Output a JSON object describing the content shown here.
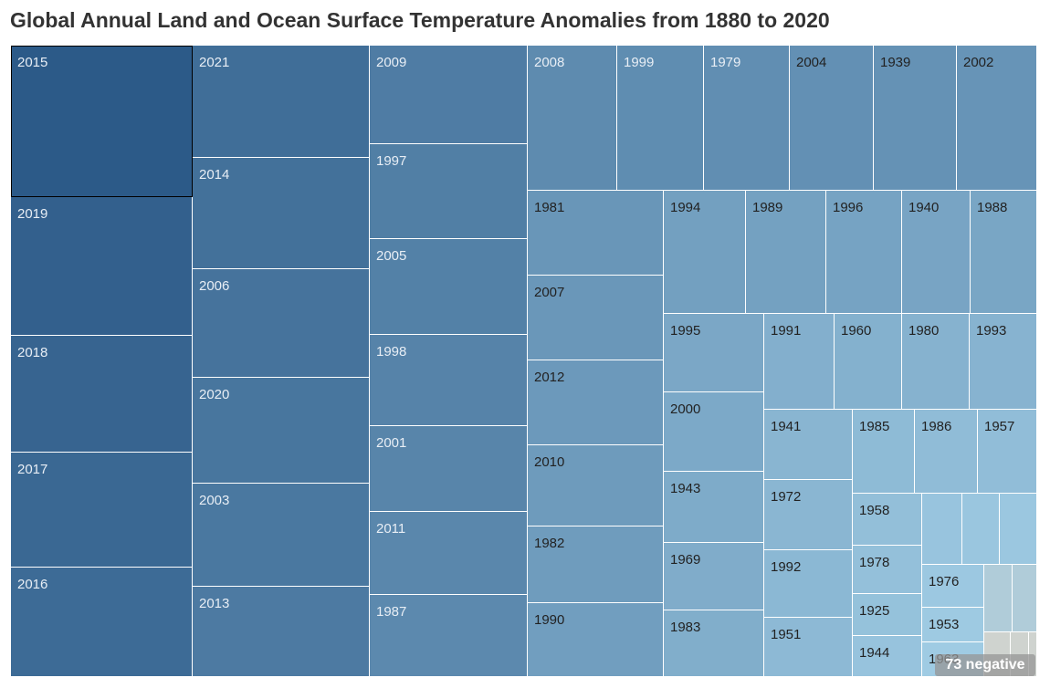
{
  "chart_data": {
    "type": "treemap",
    "title": "Global Annual Land and Ocean Surface Temperature Anomalies from 1880 to 2020",
    "cells": [
      "2015",
      "2019",
      "2018",
      "2017",
      "2016",
      "2021",
      "2014",
      "2006",
      "2020",
      "2003",
      "2013",
      "2009",
      "1997",
      "2005",
      "1998",
      "2001",
      "2011",
      "1987",
      "2008",
      "1999",
      "1979",
      "2004",
      "1939",
      "2002",
      "1981",
      "2007",
      "2012",
      "2010",
      "1982",
      "1990",
      "1994",
      "1989",
      "1996",
      "1940",
      "1988",
      "1995",
      "2000",
      "1943",
      "1969",
      "1983",
      "1991",
      "1960",
      "1980",
      "1993",
      "1941",
      "1972",
      "1992",
      "1951",
      "1985",
      "1986",
      "1957",
      "1958",
      "1978",
      "1925",
      "1944",
      "",
      "",
      "",
      "1976",
      "1953",
      "1963",
      "",
      "",
      "",
      "",
      ""
    ],
    "dark_color": "#2c5a88",
    "light_color": "#9fcbe3",
    "muted_color": "#b0ccd9",
    "neutral_color": "#cfd3cf",
    "badge": "73 negative"
  }
}
